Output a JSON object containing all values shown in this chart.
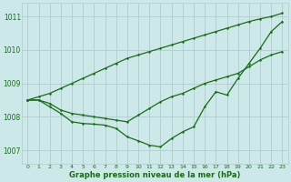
{
  "title": "Graphe pression niveau de la mer (hPa)",
  "bg_color": "#cce8e8",
  "grid_color": "#b0cccc",
  "line_color": "#1a6b1a",
  "xlim": [
    -0.5,
    23.5
  ],
  "ylim": [
    1006.6,
    1011.4
  ],
  "yticks": [
    1007,
    1008,
    1009,
    1010,
    1011
  ],
  "xticks": [
    0,
    1,
    2,
    3,
    4,
    5,
    6,
    7,
    8,
    9,
    10,
    11,
    12,
    13,
    14,
    15,
    16,
    17,
    18,
    19,
    20,
    21,
    22,
    23
  ],
  "line1_x": [
    0,
    1,
    2,
    3,
    4,
    5,
    6,
    7,
    8,
    9,
    10,
    11,
    12,
    13,
    14,
    15,
    16,
    17,
    18,
    19,
    20,
    21,
    22,
    23
  ],
  "line1_y": [
    1008.5,
    1008.6,
    1008.7,
    1008.85,
    1009.0,
    1009.15,
    1009.3,
    1009.45,
    1009.6,
    1009.75,
    1009.85,
    1009.95,
    1010.05,
    1010.15,
    1010.25,
    1010.35,
    1010.45,
    1010.55,
    1010.65,
    1010.75,
    1010.85,
    1010.93,
    1011.0,
    1011.1
  ],
  "line2_x": [
    0,
    1,
    2,
    3,
    4,
    5,
    6,
    7,
    8,
    9,
    10,
    11,
    12,
    13,
    14,
    15,
    16,
    17,
    18,
    19,
    20,
    21,
    22,
    23
  ],
  "line2_y": [
    1008.5,
    1008.5,
    1008.4,
    1008.2,
    1008.1,
    1008.05,
    1008.0,
    1007.95,
    1007.9,
    1007.85,
    1008.05,
    1008.25,
    1008.45,
    1008.6,
    1008.7,
    1008.85,
    1009.0,
    1009.1,
    1009.2,
    1009.3,
    1009.5,
    1009.7,
    1009.85,
    1009.95
  ],
  "line3_x": [
    0,
    1,
    2,
    3,
    4,
    5,
    6,
    7,
    8,
    9,
    10,
    11,
    12,
    13,
    14,
    15,
    16,
    17,
    18,
    19,
    20,
    21,
    22,
    23
  ],
  "line3_y": [
    1008.5,
    1008.5,
    1008.3,
    1008.1,
    1007.85,
    1007.8,
    1007.78,
    1007.75,
    1007.65,
    1007.4,
    1007.28,
    1007.15,
    1007.1,
    1007.35,
    1007.55,
    1007.7,
    1008.3,
    1008.75,
    1008.65,
    1009.15,
    1009.6,
    1010.05,
    1010.55,
    1010.85
  ]
}
